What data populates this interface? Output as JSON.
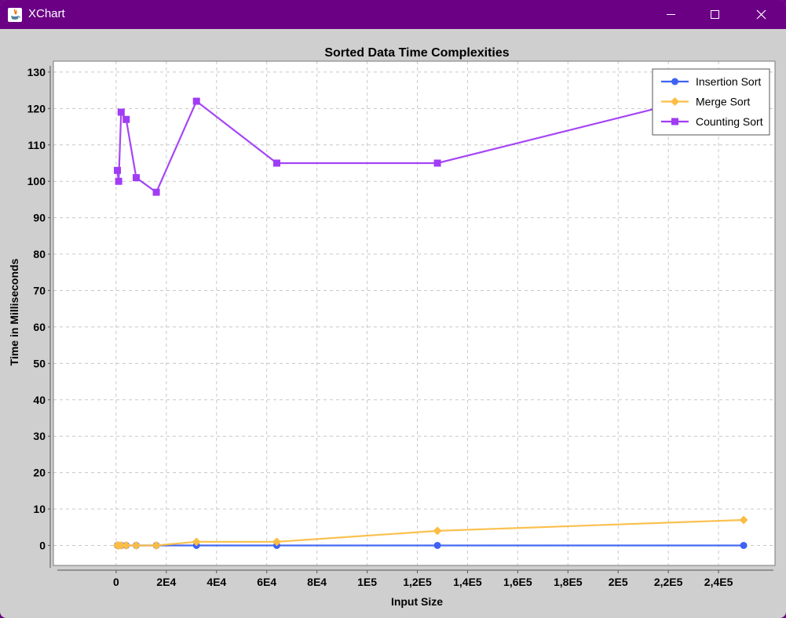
{
  "window": {
    "title": "XChart",
    "app_icon": "java-icon",
    "controls": [
      "minimize-icon",
      "maximize-icon",
      "close-icon"
    ],
    "titlebar_color": "#6b0085"
  },
  "chart_data": {
    "type": "line",
    "title": "Sorted Data Time Complexities",
    "xlabel": "Input Size",
    "ylabel": "Time in Milliseconds",
    "xlim": [
      -25000,
      262500
    ],
    "ylim": [
      -5.5,
      133
    ],
    "grid": true,
    "legend_position": "top-right",
    "x_ticks": [
      {
        "value": 0,
        "label": "0"
      },
      {
        "value": 20000,
        "label": "2E4"
      },
      {
        "value": 40000,
        "label": "4E4"
      },
      {
        "value": 60000,
        "label": "6E4"
      },
      {
        "value": 80000,
        "label": "8E4"
      },
      {
        "value": 100000,
        "label": "1E5"
      },
      {
        "value": 120000,
        "label": "1,2E5"
      },
      {
        "value": 140000,
        "label": "1,4E5"
      },
      {
        "value": 160000,
        "label": "1,6E5"
      },
      {
        "value": 180000,
        "label": "1,8E5"
      },
      {
        "value": 200000,
        "label": "2E5"
      },
      {
        "value": 220000,
        "label": "2,2E5"
      },
      {
        "value": 240000,
        "label": "2,4E5"
      }
    ],
    "y_ticks": [
      {
        "value": 0,
        "label": "0"
      },
      {
        "value": 10,
        "label": "10"
      },
      {
        "value": 20,
        "label": "20"
      },
      {
        "value": 30,
        "label": "30"
      },
      {
        "value": 40,
        "label": "40"
      },
      {
        "value": 50,
        "label": "50"
      },
      {
        "value": 60,
        "label": "60"
      },
      {
        "value": 70,
        "label": "70"
      },
      {
        "value": 80,
        "label": "80"
      },
      {
        "value": 90,
        "label": "90"
      },
      {
        "value": 100,
        "label": "100"
      },
      {
        "value": 110,
        "label": "110"
      },
      {
        "value": 120,
        "label": "120"
      },
      {
        "value": 130,
        "label": "130"
      }
    ],
    "x": [
      500,
      1000,
      2000,
      4000,
      8000,
      16000,
      32000,
      64000,
      128000,
      250000
    ],
    "series": [
      {
        "name": "Insertion Sort",
        "color": "#3e63f2",
        "marker": "circle",
        "values": [
          0,
          0,
          0,
          0,
          0,
          0,
          0,
          0,
          0,
          0
        ]
      },
      {
        "name": "Merge Sort",
        "color": "#fbbd45",
        "marker": "diamond",
        "values": [
          0,
          0,
          0,
          0,
          0,
          0,
          1,
          1,
          4,
          7
        ]
      },
      {
        "name": "Counting Sort",
        "color": "#a03cf5",
        "marker": "square",
        "values": [
          103,
          100,
          119,
          117,
          101,
          97,
          122,
          105,
          105,
          126
        ]
      }
    ]
  }
}
